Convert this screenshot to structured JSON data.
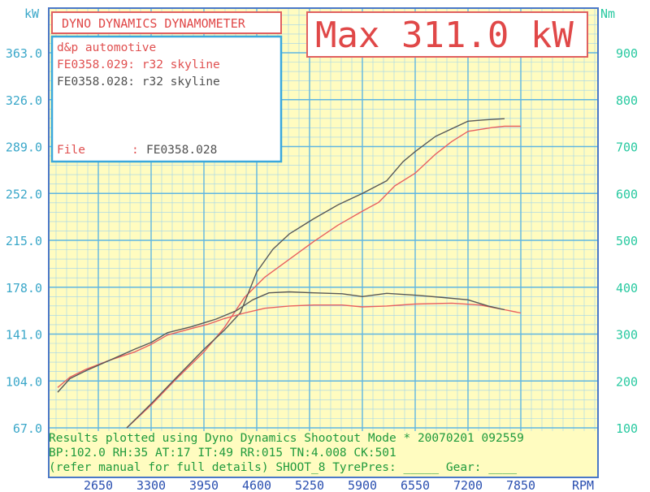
{
  "header": {
    "title": "DYNO DYNAMICS DYNAMOMETER",
    "max_value": "Max 311.0 kW"
  },
  "legend": {
    "company": "d&p automotive",
    "run_red": "FE0358.029: r32 skyline",
    "run_dark": "FE0358.028: r32 skyline",
    "file_label": "File",
    "file_sep": ":",
    "file_value": "FE0358.028"
  },
  "footer": {
    "line1": "Results plotted using Dyno Dynamics Shootout Mode * 20070201 092559",
    "line2": "BP:102.0 RH:35 AT:17 IT:49  RR:015 TN:4.008 CK:501",
    "line3": "(refer manual for full details) SHOOT_8  TyrePres: _____ Gear: ____"
  },
  "colors": {
    "red_series": "#e86060",
    "dark_series": "#585858",
    "grid": "#9fd3ec",
    "plot_bg": "#fffcc0",
    "frame": "#4a78c8",
    "title_red": "#e04848",
    "left_axis": "#3aa7c9",
    "right_axis": "#27c9a0",
    "footer_green": "#1f9a3c"
  },
  "chart_data": {
    "type": "line",
    "x_unit": "RPM",
    "x_ticks": [
      2650,
      3300,
      3950,
      4600,
      5250,
      5900,
      6550,
      7200,
      7850
    ],
    "x_range": [
      2100,
      8250
    ],
    "y_left_unit": "kW",
    "y_left_ticks": [
      "67.0",
      "104.0",
      "141.0",
      "178.0",
      "215.0",
      "252.0",
      "289.0",
      "326.0",
      "363.0"
    ],
    "y_left_range": [
      67,
      400
    ],
    "y_right_unit": "Nm",
    "y_right_ticks": [
      100,
      200,
      300,
      400,
      500,
      600,
      700,
      800,
      900
    ],
    "y_right_range": [
      100,
      954
    ],
    "grid": true,
    "series": [
      {
        "name": "FE0358.029: r32 skyline",
        "role": "power",
        "color": "#e86060",
        "points": [
          [
            3000,
            67
          ],
          [
            3300,
            85
          ],
          [
            3600,
            105
          ],
          [
            3950,
            127
          ],
          [
            4200,
            146
          ],
          [
            4450,
            170
          ],
          [
            4700,
            186
          ],
          [
            5000,
            200
          ],
          [
            5300,
            214
          ],
          [
            5600,
            227
          ],
          [
            5900,
            238
          ],
          [
            6100,
            245
          ],
          [
            6300,
            258
          ],
          [
            6550,
            268
          ],
          [
            6800,
            283
          ],
          [
            7000,
            293
          ],
          [
            7200,
            301
          ],
          [
            7500,
            304
          ],
          [
            7650,
            305
          ],
          [
            7850,
            305
          ]
        ]
      },
      {
        "name": "FE0358.028: r32 skyline",
        "role": "power",
        "color": "#585858",
        "points": [
          [
            3000,
            67
          ],
          [
            3300,
            86
          ],
          [
            3600,
            106
          ],
          [
            3950,
            129
          ],
          [
            4200,
            144
          ],
          [
            4400,
            158
          ],
          [
            4600,
            190
          ],
          [
            4800,
            208
          ],
          [
            5000,
            220
          ],
          [
            5300,
            232
          ],
          [
            5600,
            243
          ],
          [
            5900,
            252
          ],
          [
            6200,
            262
          ],
          [
            6400,
            277
          ],
          [
            6550,
            285
          ],
          [
            6800,
            297
          ],
          [
            7000,
            303
          ],
          [
            7200,
            309
          ],
          [
            7400,
            310
          ],
          [
            7650,
            311
          ]
        ]
      },
      {
        "name": "FE0358.029: r32 skyline",
        "role": "torque",
        "color": "#e86060",
        "points": [
          [
            2150,
            186
          ],
          [
            2300,
            208
          ],
          [
            2500,
            225
          ],
          [
            2800,
            245
          ],
          [
            3100,
            262
          ],
          [
            3300,
            278
          ],
          [
            3500,
            298
          ],
          [
            3800,
            312
          ],
          [
            4000,
            321
          ],
          [
            4200,
            333
          ],
          [
            4450,
            345
          ],
          [
            4700,
            355
          ],
          [
            5000,
            360
          ],
          [
            5300,
            362
          ],
          [
            5650,
            362
          ],
          [
            5900,
            358
          ],
          [
            6200,
            360
          ],
          [
            6550,
            364
          ],
          [
            7000,
            366
          ],
          [
            7350,
            362
          ],
          [
            7650,
            352
          ],
          [
            7850,
            345
          ]
        ]
      },
      {
        "name": "FE0358.028: r32 skyline",
        "role": "torque",
        "color": "#585858",
        "points": [
          [
            2150,
            176
          ],
          [
            2300,
            205
          ],
          [
            2500,
            222
          ],
          [
            2800,
            245
          ],
          [
            3100,
            268
          ],
          [
            3300,
            282
          ],
          [
            3500,
            303
          ],
          [
            3800,
            316
          ],
          [
            4100,
            332
          ],
          [
            4350,
            350
          ],
          [
            4550,
            373
          ],
          [
            4750,
            388
          ],
          [
            5000,
            390
          ],
          [
            5300,
            388
          ],
          [
            5650,
            386
          ],
          [
            5900,
            380
          ],
          [
            6200,
            387
          ],
          [
            6550,
            383
          ],
          [
            6900,
            378
          ],
          [
            7200,
            373
          ],
          [
            7450,
            360
          ],
          [
            7650,
            352
          ]
        ]
      }
    ]
  }
}
